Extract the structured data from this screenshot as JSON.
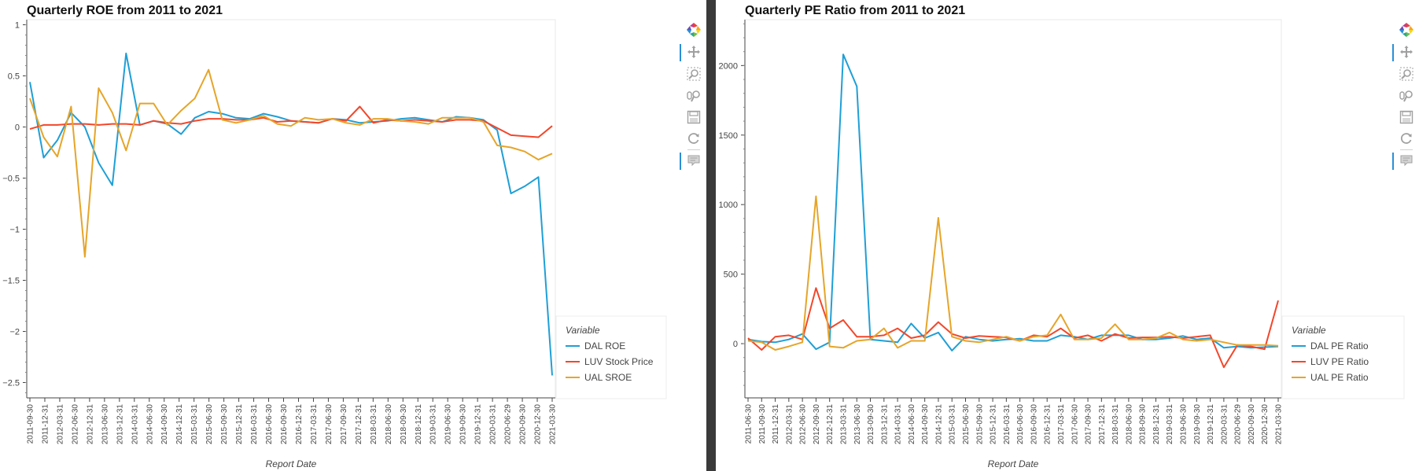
{
  "charts": {
    "left": {
      "title": "Quarterly ROE from 2011 to 2021"
    },
    "right": {
      "title": "Quarterly PE Ratio from 2011 to 2021"
    }
  },
  "toolbar": {
    "icons": [
      "bokeh-logo-icon",
      "pan-icon",
      "box-zoom-icon",
      "wheel-zoom-icon",
      "save-icon",
      "reset-icon",
      "hover-icon"
    ]
  },
  "colors": {
    "blue": "#1f9fd6",
    "red": "#f2472b",
    "gold": "#e5a52a"
  },
  "chart_data": [
    {
      "type": "line",
      "title": "Quarterly ROE from 2011 to 2021",
      "xlabel": "Report Date",
      "ylabel": "",
      "ylim": [
        -2.65,
        1.05
      ],
      "yticks": [
        1,
        0.5,
        0,
        -0.5,
        -1,
        -1.5,
        -2,
        -2.5
      ],
      "ytick_labels": [
        "1",
        "0.5",
        "0",
        "−0.5",
        "−1",
        "−1.5",
        "−2",
        "−2.5"
      ],
      "x": [
        "2011-09-30",
        "2011-12-31",
        "2012-03-31",
        "2012-06-30",
        "2012-09-30",
        "2012-12-31",
        "2013-03-31",
        "2013-06-30",
        "2013-09-30",
        "2013-12-31",
        "2014-03-31",
        "2014-06-30",
        "2014-09-30",
        "2014-12-31",
        "2015-03-31",
        "2015-06-30",
        "2015-09-30",
        "2015-12-31",
        "2016-03-31",
        "2016-06-30",
        "2016-09-30",
        "2016-12-31",
        "2017-03-31",
        "2017-06-30",
        "2017-09-30",
        "2017-12-31",
        "2018-03-31",
        "2018-06-30",
        "2018-09-30",
        "2018-12-31",
        "2019-03-31",
        "2019-06-30",
        "2019-09-30",
        "2019-12-31",
        "2020-03-31",
        "2020-06-30",
        "2020-09-30",
        "2020-12-31",
        "2021-03-31"
      ],
      "xtick_labels": [
        "2011-09-30",
        "2011-12-31",
        "2012-03-31",
        "2012-06-30",
        "2012-12-31",
        "2013-06-30",
        "2013-12-31",
        "2014-03-31",
        "2014-06-30",
        "2014-09-30",
        "2014-12-31",
        "2015-03-31",
        "2015-06-30",
        "2015-09-30",
        "2015-12-31",
        "2016-03-31",
        "2016-06-30",
        "2016-09-30",
        "2016-12-31",
        "2017-03-31",
        "2017-06-30",
        "2017-09-30",
        "2017-12-31",
        "2018-03-31",
        "2018-06-30",
        "2018-09-30",
        "2018-12-31",
        "2019-03-31",
        "2019-06-30",
        "2019-09-30",
        "2019-12-31",
        "2020-03-31",
        "2020-06-29",
        "2020-09-30",
        "2020-12-30",
        "2021-03-30"
      ],
      "legend": {
        "title": "Variable",
        "placement": "bottom-right",
        "entries": [
          "DAL ROE",
          "LUV Stock Price",
          "UAL SROE"
        ]
      },
      "series": [
        {
          "name": "DAL ROE",
          "color": "#1f9fd6",
          "values": [
            0.44,
            -0.3,
            -0.13,
            0.14,
            0.0,
            -0.35,
            -0.57,
            0.72,
            0.02,
            0.06,
            0.03,
            -0.07,
            0.09,
            0.15,
            0.13,
            0.09,
            0.08,
            0.13,
            0.1,
            0.06,
            0.05,
            0.04,
            0.08,
            0.07,
            0.04,
            0.05,
            0.06,
            0.08,
            0.09,
            0.07,
            0.05,
            0.1,
            0.09,
            0.07,
            -0.03,
            -0.65,
            -0.58,
            -0.49,
            -2.43
          ]
        },
        {
          "name": "LUV Stock Price",
          "color": "#f2472b",
          "values": [
            -0.02,
            0.02,
            0.02,
            0.03,
            0.03,
            0.02,
            0.03,
            0.03,
            0.02,
            0.06,
            0.04,
            0.03,
            0.06,
            0.08,
            0.08,
            0.07,
            0.07,
            0.09,
            0.05,
            0.06,
            0.05,
            0.04,
            0.08,
            0.06,
            0.2,
            0.04,
            0.07,
            0.06,
            0.07,
            0.06,
            0.05,
            0.07,
            0.07,
            0.06,
            -0.01,
            -0.08,
            -0.09,
            -0.1,
            0.01
          ]
        },
        {
          "name": "UAL SROE",
          "color": "#e5a52a",
          "values": [
            0.28,
            -0.1,
            -0.29,
            0.2,
            -1.27,
            0.38,
            0.14,
            -0.23,
            0.23,
            0.23,
            0.02,
            0.16,
            0.28,
            0.56,
            0.07,
            0.04,
            0.07,
            0.11,
            0.03,
            0.01,
            0.09,
            0.07,
            0.08,
            0.04,
            0.02,
            0.08,
            0.08,
            0.06,
            0.05,
            0.03,
            0.09,
            0.09,
            0.09,
            0.05,
            -0.18,
            -0.2,
            -0.24,
            -0.32,
            -0.26
          ]
        }
      ]
    },
    {
      "type": "line",
      "title": "Quarterly PE Ratio from 2011 to 2021",
      "xlabel": "Report Date",
      "ylabel": "",
      "ylim": [
        -390,
        2330
      ],
      "yticks": [
        2000,
        1500,
        1000,
        500,
        0
      ],
      "ytick_labels": [
        "2000",
        "1500",
        "1000",
        "500",
        "0"
      ],
      "x": [
        "2011-06-30",
        "2011-09-30",
        "2011-12-31",
        "2012-03-31",
        "2012-06-30",
        "2012-09-30",
        "2012-12-31",
        "2013-03-31",
        "2013-06-30",
        "2013-09-30",
        "2013-12-31",
        "2014-03-31",
        "2014-06-30",
        "2014-09-30",
        "2014-12-31",
        "2015-03-31",
        "2015-06-30",
        "2015-09-30",
        "2015-12-31",
        "2016-03-31",
        "2016-06-30",
        "2016-09-30",
        "2016-12-31",
        "2017-03-31",
        "2017-06-30",
        "2017-09-30",
        "2017-12-31",
        "2018-03-31",
        "2018-06-30",
        "2018-09-30",
        "2018-12-31",
        "2019-03-31",
        "2019-06-30",
        "2019-09-30",
        "2019-12-31",
        "2020-03-31",
        "2020-06-29",
        "2020-09-30",
        "2020-12-30",
        "2021-03-30"
      ],
      "xtick_labels": [
        "2011-06-30",
        "2011-09-30",
        "2011-12-31",
        "2012-03-31",
        "2012-06-30",
        "2012-09-30",
        "2012-12-31",
        "2013-03-31",
        "2013-06-30",
        "2013-09-30",
        "2013-12-31",
        "2014-03-31",
        "2014-06-30",
        "2014-09-30",
        "2014-12-31",
        "2015-03-31",
        "2015-06-30",
        "2015-09-30",
        "2015-12-31",
        "2016-03-31",
        "2016-06-30",
        "2016-09-30",
        "2016-12-31",
        "2017-03-31",
        "2017-06-30",
        "2017-09-30",
        "2017-12-31",
        "2018-03-31",
        "2018-06-30",
        "2018-09-30",
        "2018-12-31",
        "2019-03-31",
        "2019-06-30",
        "2019-09-30",
        "2019-12-31",
        "2020-03-31",
        "2020-06-29",
        "2020-09-30",
        "2020-12-30",
        "2021-03-30"
      ],
      "legend": {
        "title": "Variable",
        "placement": "bottom-right",
        "entries": [
          "DAL PE Ratio",
          "LUV PE Ratio",
          "UAL PE Ratio"
        ]
      },
      "series": [
        {
          "name": "DAL PE Ratio",
          "color": "#1f9fd6",
          "values": [
            30,
            15,
            10,
            30,
            70,
            -40,
            10,
            2080,
            1850,
            30,
            20,
            10,
            145,
            40,
            80,
            -50,
            50,
            30,
            20,
            30,
            35,
            20,
            20,
            60,
            50,
            30,
            60,
            60,
            60,
            30,
            30,
            40,
            55,
            30,
            40,
            -30,
            -20,
            -30,
            -25,
            -20
          ]
        },
        {
          "name": "LUV PE Ratio",
          "color": "#f2472b",
          "values": [
            40,
            -45,
            50,
            60,
            30,
            400,
            110,
            170,
            50,
            50,
            60,
            110,
            40,
            60,
            155,
            70,
            40,
            55,
            50,
            45,
            20,
            60,
            50,
            110,
            40,
            60,
            20,
            70,
            40,
            45,
            45,
            50,
            40,
            50,
            60,
            -170,
            -10,
            -20,
            -40,
            310
          ]
        },
        {
          "name": "UAL PE Ratio",
          "color": "#e5a52a",
          "values": [
            20,
            10,
            -45,
            -20,
            10,
            1060,
            -20,
            -30,
            20,
            30,
            110,
            -30,
            20,
            20,
            905,
            50,
            20,
            10,
            30,
            50,
            20,
            50,
            60,
            210,
            30,
            30,
            40,
            140,
            30,
            30,
            40,
            80,
            30,
            20,
            30,
            10,
            -10,
            -10,
            -10,
            -15
          ]
        }
      ]
    }
  ]
}
